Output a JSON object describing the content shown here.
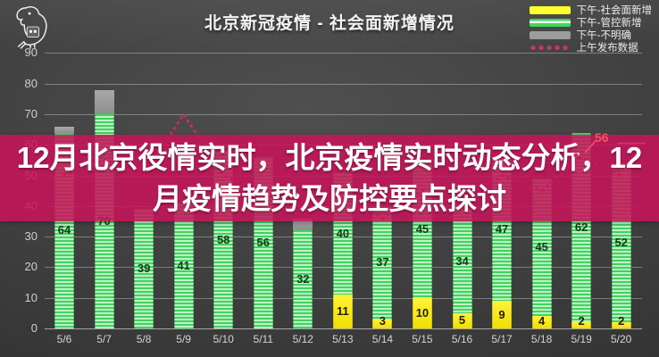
{
  "header": {
    "title": "北京新冠疫情 - 社会面新增情况"
  },
  "overlay": {
    "lines": [
      "12月北京役情实时，北京疫情实时动态分析，12",
      "月疫情趋势及防控要点探讨"
    ]
  },
  "logo": {
    "name": "parrot-mascot"
  },
  "chart_data": {
    "type": "bar",
    "stacked": true,
    "title": "北京新冠疫情 - 社会面新增情况",
    "categories": [
      "5/6",
      "5/7",
      "5/8",
      "5/9",
      "5/10",
      "5/11",
      "5/12",
      "5/13",
      "5/14",
      "5/15",
      "5/16",
      "5/17",
      "5/18",
      "5/19",
      "5/20"
    ],
    "series": [
      {
        "name": "下午-社会面新增",
        "type": "bar",
        "color": "#f6e90f",
        "swatch": "yellow-bar",
        "values": [
          0,
          0,
          0,
          0,
          0,
          0,
          0,
          11,
          3,
          10,
          5,
          9,
          4,
          2,
          2
        ]
      },
      {
        "name": "下午-管控新增",
        "type": "bar",
        "color": "#45d463",
        "swatch": "green-striped-bar",
        "values": [
          64,
          70,
          39,
          41,
          58,
          56,
          32,
          40,
          37,
          45,
          34,
          47,
          45,
          62,
          52
        ]
      },
      {
        "name": "下午-不明确",
        "type": "bar",
        "color": "#9d9d9d",
        "swatch": "gray-bar",
        "values": [
          2,
          8,
          0,
          0,
          0,
          0,
          4,
          0,
          0,
          0,
          0,
          0,
          0,
          0,
          0
        ]
      },
      {
        "name": "上午发布数据",
        "type": "dotted-line",
        "color": "#d22a66",
        "swatch": "red-dots",
        "values": [
          50,
          55,
          50,
          70,
          50,
          45,
          38,
          45,
          36,
          45,
          40,
          50,
          45,
          56,
          50
        ],
        "annotation": {
          "category": "5/19",
          "label": "56"
        }
      }
    ],
    "ylim": [
      0,
      90
    ],
    "ytick_step": 10,
    "grid": true,
    "legend_position": "top-right"
  }
}
